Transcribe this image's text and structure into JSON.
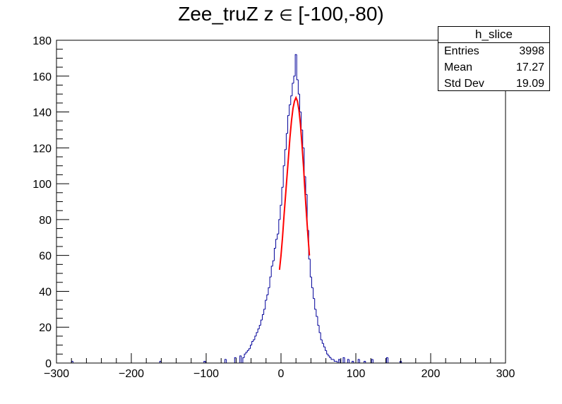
{
  "title_parts": {
    "before": "Zee_truZ z ",
    "symbol": "∈",
    "after": " [-100,-80)"
  },
  "stats_box": {
    "name": "h_slice",
    "rows": [
      {
        "label": "Entries",
        "value": "3998"
      },
      {
        "label": "Mean",
        "value": "17.27"
      },
      {
        "label": "Std Dev",
        "value": "19.09"
      }
    ]
  },
  "colors": {
    "histogram": "#000099",
    "fit": "#ff0000",
    "axis": "#000000"
  },
  "chart_data": {
    "type": "histogram",
    "title": "Zee_truZ z ∈ [-100,-80)",
    "xlim": [
      -300,
      300
    ],
    "ylim": [
      0,
      180
    ],
    "x_ticks": [
      -300,
      -200,
      -100,
      0,
      100,
      200,
      300
    ],
    "x_tick_labels": [
      "−300",
      "−200",
      "−100",
      "0",
      "100",
      "200",
      "300"
    ],
    "y_ticks": [
      0,
      20,
      40,
      60,
      80,
      100,
      120,
      140,
      160,
      180
    ],
    "y_tick_labels": [
      "0",
      "20",
      "40",
      "60",
      "80",
      "100",
      "120",
      "140",
      "160",
      "180"
    ],
    "series": [
      {
        "kind": "histogram",
        "x": [
          -279,
          -161,
          -102,
          -74,
          -61,
          -54,
          -50,
          -48,
          -46,
          -44,
          -42,
          -40,
          -38,
          -36,
          -34,
          -32,
          -30,
          -28,
          -26,
          -24,
          -22,
          -20,
          -18,
          -16,
          -14,
          -12,
          -10,
          -8,
          -6,
          -4,
          -2,
          0,
          2,
          4,
          6,
          8,
          10,
          12,
          14,
          16,
          18,
          20,
          22,
          24,
          26,
          28,
          30,
          32,
          34,
          36,
          38,
          40,
          42,
          44,
          46,
          48,
          50,
          52,
          54,
          56,
          58,
          60,
          62,
          64,
          66,
          68,
          70,
          72,
          74,
          78,
          84,
          90,
          96,
          104,
          112,
          122,
          142,
          160
        ],
        "y": [
          1,
          1,
          1,
          2,
          3,
          4,
          3,
          5,
          6,
          7,
          8,
          10,
          12,
          13,
          15,
          17,
          19,
          21,
          24,
          27,
          30,
          35,
          38,
          42,
          48,
          54,
          57,
          64,
          69,
          72,
          80,
          88,
          98,
          110,
          119,
          128,
          138,
          144,
          149,
          156,
          160,
          172,
          158,
          150,
          140,
          130,
          120,
          104,
          94,
          74,
          58,
          48,
          42,
          36,
          30,
          26,
          21,
          17,
          13,
          11,
          9,
          7,
          5,
          4,
          3,
          2,
          2,
          1,
          1,
          2,
          3,
          2,
          1,
          2,
          1,
          2,
          3,
          1
        ]
      },
      {
        "kind": "fit",
        "name": "",
        "x": [
          -2,
          0,
          2,
          4,
          6,
          8,
          10,
          12,
          14,
          16,
          18,
          20,
          22,
          24,
          26,
          28,
          30,
          32,
          34,
          36,
          38
        ],
        "y": [
          52,
          60,
          70,
          82,
          93,
          104,
          115,
          126,
          135,
          142,
          146,
          148,
          146,
          141,
          133,
          122,
          110,
          96,
          83,
          71,
          60
        ]
      }
    ]
  }
}
